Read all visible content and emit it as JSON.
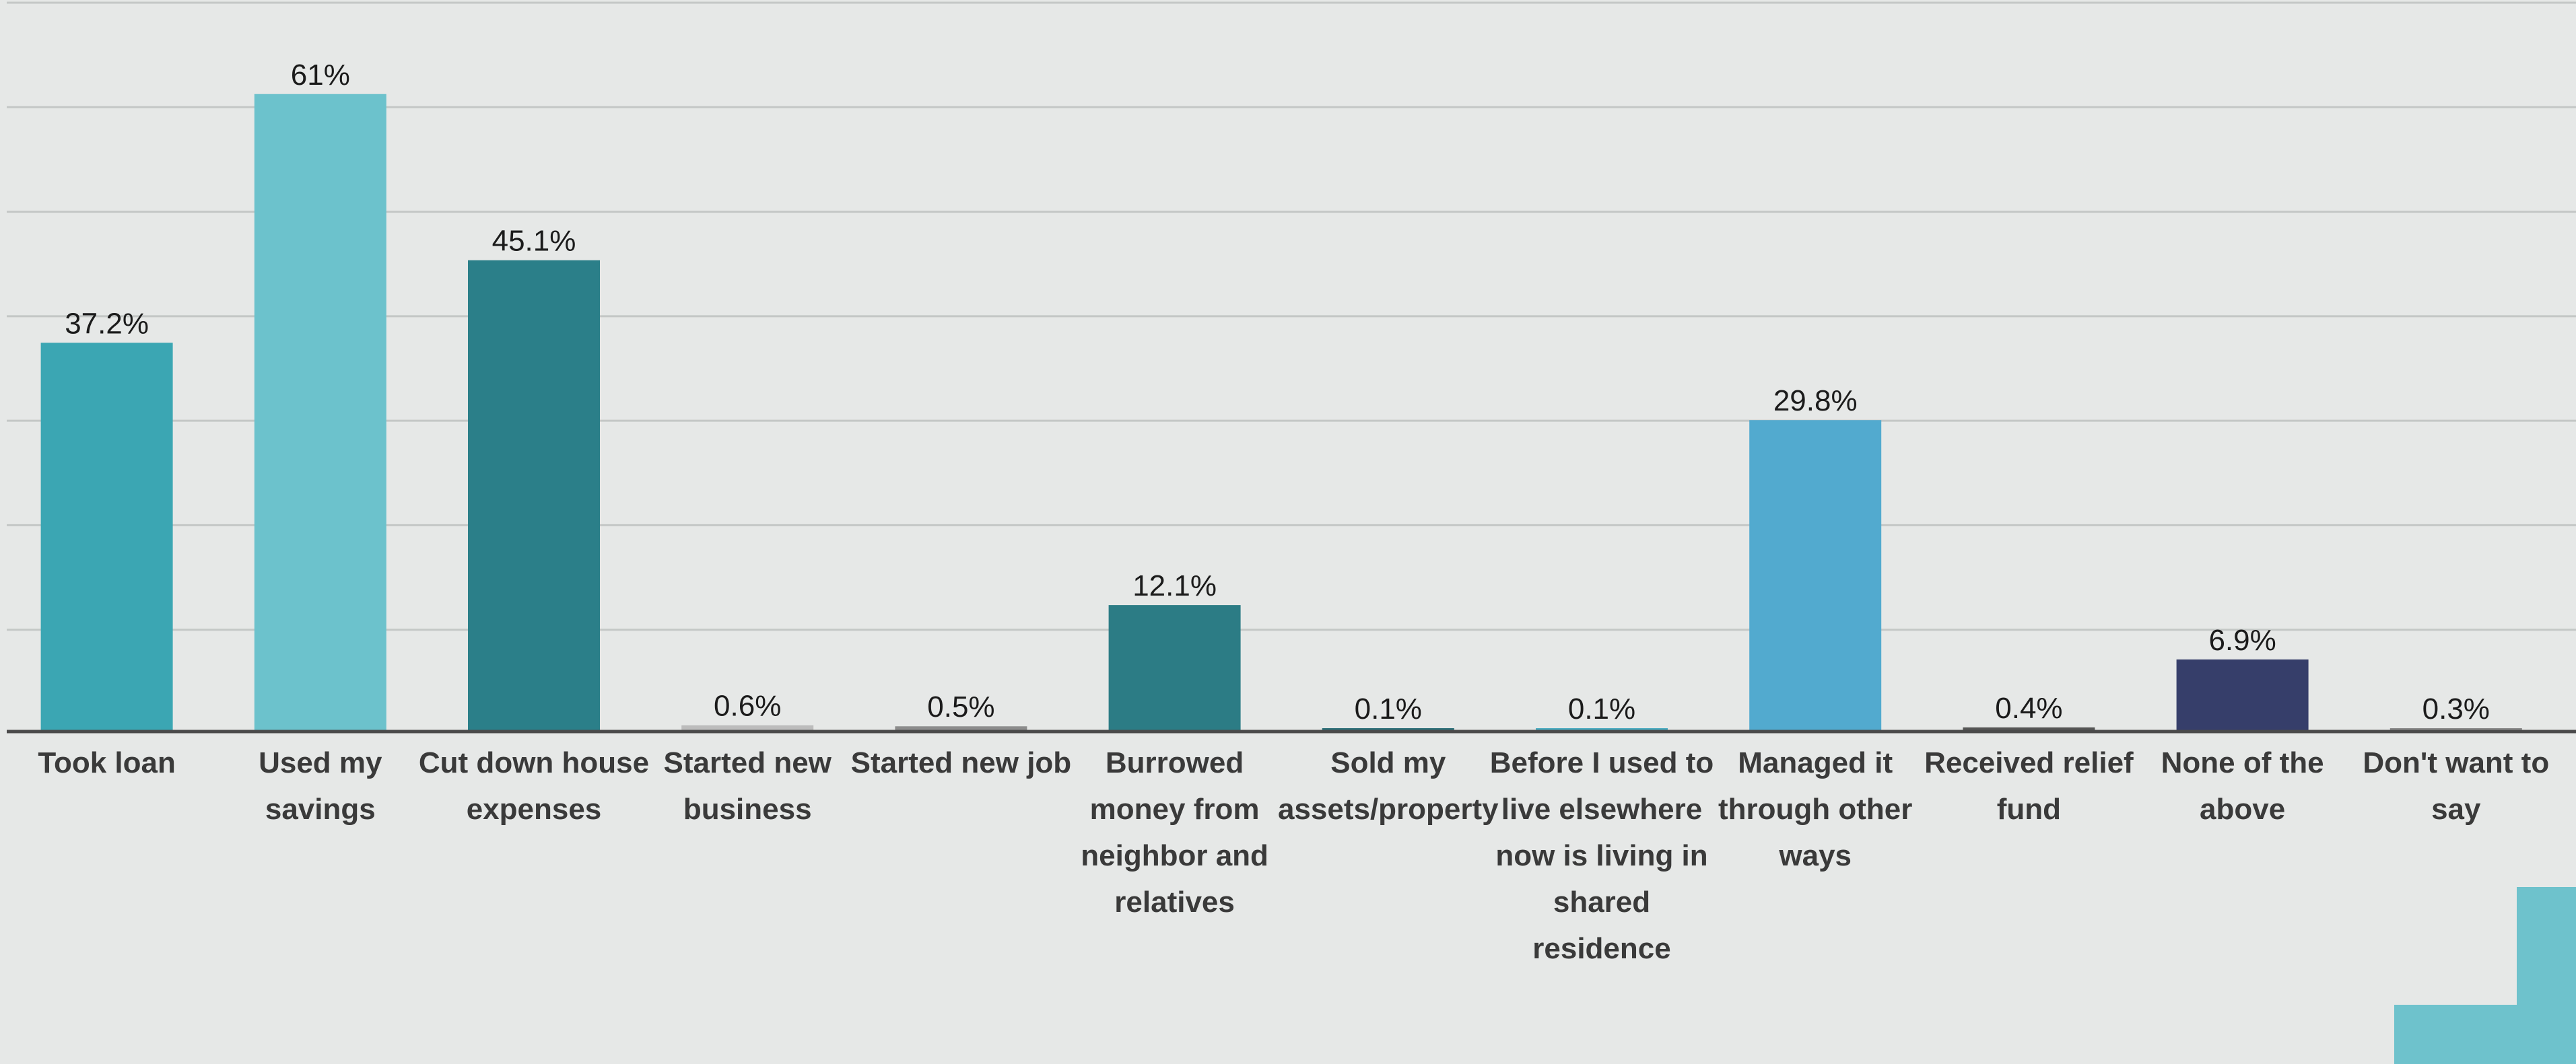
{
  "chart_data": {
    "type": "bar",
    "categories": [
      "Took loan",
      "Used my savings",
      "Cut down house expenses",
      "Started new business",
      "Started new job",
      "Burrowed money from neighbor and relatives",
      "Sold my assets/property",
      "Before I used to live elsewhere now is living in shared residence",
      "Managed it through other ways",
      "Received relief fund",
      "None of the above",
      "Don't want to say"
    ],
    "category_label_lines": [
      [
        "Took loan"
      ],
      [
        "Used my",
        "savings"
      ],
      [
        "Cut down house",
        "expenses"
      ],
      [
        "Started new",
        "business"
      ],
      [
        "Started new job"
      ],
      [
        "Burrowed",
        "money from",
        "neighbor and",
        "relatives"
      ],
      [
        "Sold my",
        "assets/property"
      ],
      [
        "Before I used to",
        "live elsewhere",
        "now is living in",
        "shared",
        "residence"
      ],
      [
        "Managed it",
        "through other",
        "ways"
      ],
      [
        "Received relief",
        "fund"
      ],
      [
        "None of the",
        "above"
      ],
      [
        "Don't want to",
        "say"
      ]
    ],
    "values": [
      37.2,
      61,
      45.1,
      0.6,
      0.5,
      12.1,
      0.1,
      0.1,
      29.8,
      0.4,
      6.9,
      0.3
    ],
    "value_labels": [
      "37.2%",
      "61%",
      "45.1%",
      "0.6%",
      "0.5%",
      "12.1%",
      "0.1%",
      "0.1%",
      "29.8%",
      "0.4%",
      "6.9%",
      "0.3%"
    ],
    "colors": [
      "#3ba6b3",
      "#6cc2cc",
      "#2b7f89",
      "#bcbcbc",
      "#8c8c8c",
      "#2c7c85",
      "#2c6f78",
      "#4aaac0",
      "#52aacf",
      "#555555",
      "#363e6a",
      "#888888"
    ],
    "ylim": [
      0,
      70
    ],
    "grid": true,
    "title": "",
    "xlabel": "",
    "ylabel": ""
  },
  "colors": {
    "background": "#e6e8e7",
    "gridline": "#c4c7c6",
    "axis": "#4a4a4a",
    "corner_accent": "#6ec2cc"
  }
}
